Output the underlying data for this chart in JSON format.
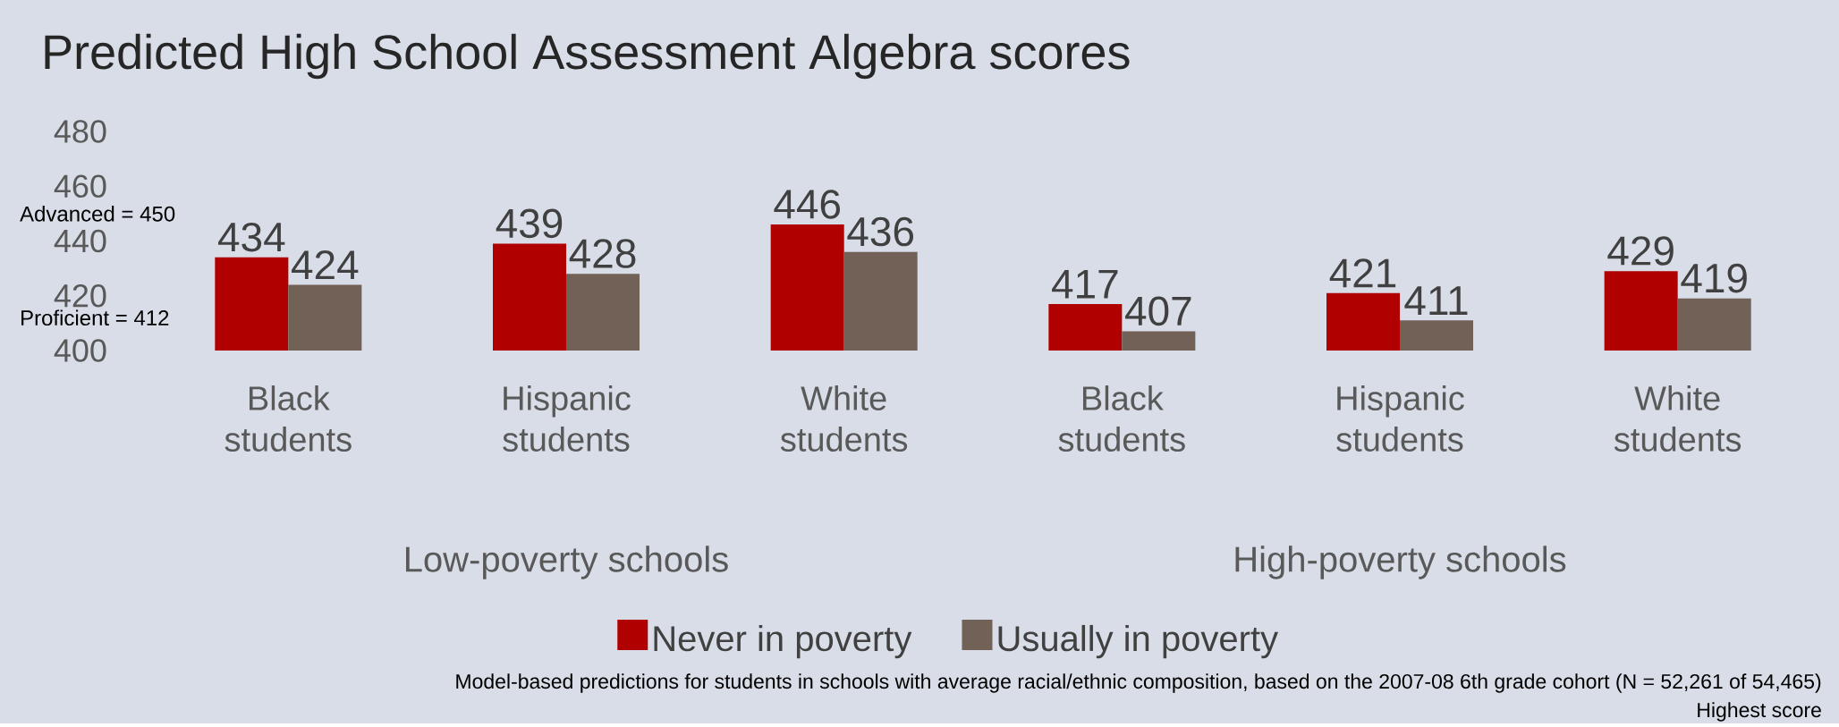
{
  "chart_data": {
    "type": "bar",
    "title": "Predicted High School Assessment Algebra scores",
    "categories": [
      "Black students",
      "Hispanic students",
      "White students",
      "Black students",
      "Hispanic students",
      "White students"
    ],
    "series": [
      {
        "name": "Never in poverty",
        "color": "#b00000",
        "values": [
          434,
          439,
          446,
          417,
          421,
          429
        ]
      },
      {
        "name": "Usually in poverty",
        "color": "#716157",
        "values": [
          424,
          428,
          436,
          407,
          411,
          419
        ]
      }
    ],
    "ylim": [
      400,
      480
    ],
    "yticks": [
      400,
      420,
      440,
      460,
      480
    ],
    "data_labels": true,
    "legend": "bottom",
    "annotations": [
      "Advanced = 450",
      "Proficient = 412",
      "Low-poverty schools",
      "High-poverty schools",
      "Model-based predictions for students in schools with average racial/ethnic composition, based on the 2007-08 6th grade cohort (N = 52,261 of 54,465)",
      "Highest score"
    ]
  }
}
